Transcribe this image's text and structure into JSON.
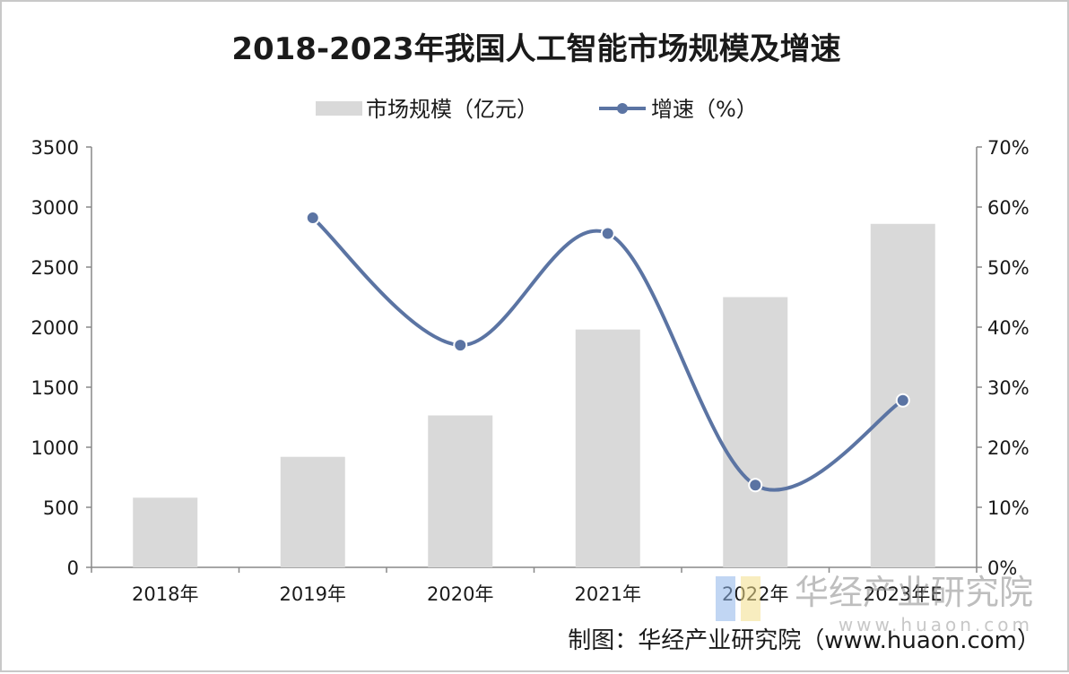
{
  "chart_data": {
    "type": "bar",
    "title": "2018-2023年我国人工智能市场规模及增速",
    "categories": [
      "2018年",
      "2019年",
      "2020年",
      "2021年",
      "2022年",
      "2023年E"
    ],
    "series": [
      {
        "name": "市场规模（亿元）",
        "type": "bar",
        "axis": "left",
        "color": "#d9d9d9",
        "values": [
          580,
          920,
          1265,
          1980,
          2250,
          2860
        ]
      },
      {
        "name": "增速（%）",
        "type": "line",
        "axis": "right",
        "color": "#5b74a3",
        "values": [
          null,
          58.2,
          37.0,
          55.6,
          13.7,
          27.8
        ]
      }
    ],
    "y_left": {
      "ylim": [
        0,
        3500
      ],
      "ticks": [
        "0",
        "500",
        "1000",
        "1500",
        "2000",
        "2500",
        "3000",
        "3500"
      ]
    },
    "y_right": {
      "ylim": [
        0,
        70
      ],
      "ticks": [
        "0%",
        "10%",
        "20%",
        "30%",
        "40%",
        "50%",
        "60%",
        "70%"
      ]
    },
    "legend_position": "top-center",
    "grid": false
  },
  "source": "制图：华经产业研究院（www.huaon.com）",
  "watermark": {
    "text": "华经产业研究院",
    "url": "www.huaon.com"
  }
}
